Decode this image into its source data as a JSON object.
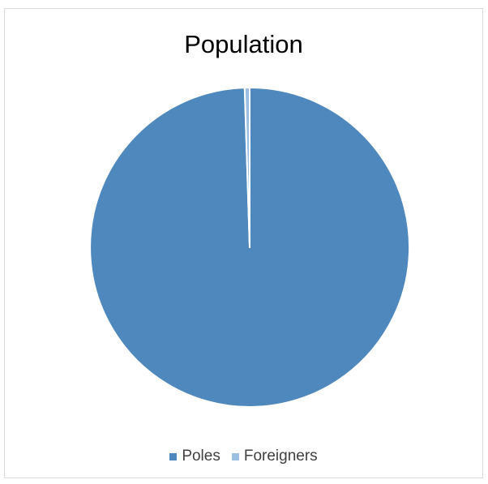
{
  "chart_data": {
    "type": "pie",
    "title": "Population",
    "categories": [
      "Poles",
      "Foreigners"
    ],
    "values": [
      99.5,
      0.5
    ],
    "colors": [
      "#4f88bc",
      "#9bbfe0"
    ],
    "legend_position": "bottom"
  }
}
